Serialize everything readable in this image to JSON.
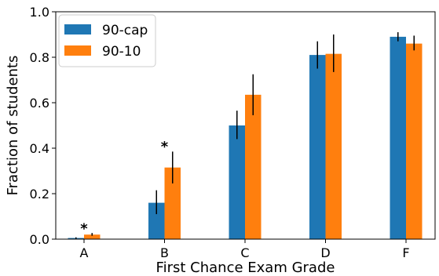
{
  "chart_data": {
    "type": "bar",
    "categories": [
      "A",
      "B",
      "C",
      "D",
      "F"
    ],
    "series": [
      {
        "name": "90-cap",
        "color": "#1f77b4",
        "values": [
          0.005,
          0.16,
          0.5,
          0.81,
          0.89
        ],
        "error_low": [
          0.002,
          0.11,
          0.44,
          0.75,
          0.87
        ],
        "error_high": [
          0.008,
          0.215,
          0.565,
          0.87,
          0.91
        ]
      },
      {
        "name": "90-10",
        "color": "#ff7f0e",
        "values": [
          0.02,
          0.315,
          0.635,
          0.815,
          0.86
        ],
        "error_low": [
          0.015,
          0.245,
          0.545,
          0.735,
          0.83
        ],
        "error_high": [
          0.027,
          0.385,
          0.725,
          0.9,
          0.895
        ]
      }
    ],
    "annotations": [
      {
        "category": "A",
        "text": "*",
        "y": 0.06
      },
      {
        "category": "B",
        "text": "*",
        "y": 0.42
      }
    ],
    "xlabel": "First Chance Exam Grade",
    "ylabel": "Fraction of students",
    "ylim": [
      0.0,
      1.0
    ],
    "yticks": [
      "0.0",
      "0.2",
      "0.4",
      "0.6",
      "0.8",
      "1.0"
    ],
    "ytick_values": [
      0.0,
      0.2,
      0.4,
      0.6,
      0.8,
      1.0
    ],
    "grid": false,
    "legend_position": "top-left"
  }
}
